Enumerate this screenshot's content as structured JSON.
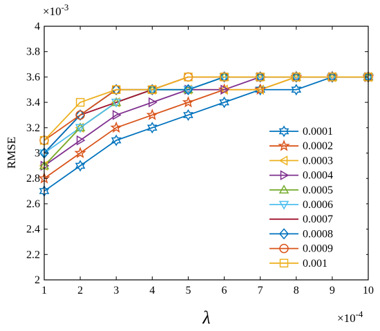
{
  "chart_data": {
    "type": "line",
    "title": "",
    "xlabel": "λ",
    "ylabel": "RMSE",
    "x_exponent_label": "×10",
    "x_exponent_power": "-4",
    "y_exponent_label": "×10",
    "y_exponent_power": "-3",
    "x": [
      1,
      2,
      3,
      4,
      5,
      6,
      7,
      8,
      9,
      10
    ],
    "xlim": [
      1,
      10
    ],
    "ylim": [
      2.0,
      4.0
    ],
    "x_ticks": [
      "1",
      "2",
      "3",
      "4",
      "5",
      "6",
      "7",
      "8",
      "9",
      "10"
    ],
    "y_ticks": [
      "2",
      "2.2",
      "2.4",
      "2.6",
      "2.8",
      "3",
      "3.2",
      "3.4",
      "3.6",
      "3.8",
      "4"
    ],
    "grid": false,
    "legend_position": "right-middle",
    "series": [
      {
        "name": "0.0001",
        "color": "#0072BD",
        "marker": "hexagram",
        "values": [
          2.7,
          2.9,
          3.1,
          3.2,
          3.3,
          3.4,
          3.5,
          3.5,
          3.6,
          3.6
        ]
      },
      {
        "name": "0.0002",
        "color": "#D95319",
        "marker": "pentagram",
        "values": [
          2.8,
          3.0,
          3.2,
          3.3,
          3.4,
          3.5,
          3.5,
          3.6,
          3.6,
          3.6
        ]
      },
      {
        "name": "0.0003",
        "color": "#EDB120",
        "marker": "triangle-left",
        "values": [
          2.9,
          3.2,
          3.4,
          3.5,
          3.5,
          3.5,
          3.5,
          3.6,
          3.6,
          3.6
        ]
      },
      {
        "name": "0.0004",
        "color": "#7E2F8E",
        "marker": "triangle-right",
        "values": [
          2.9,
          3.1,
          3.3,
          3.4,
          3.5,
          3.5,
          3.6,
          3.6,
          3.6,
          3.6
        ]
      },
      {
        "name": "0.0005",
        "color": "#77AC30",
        "marker": "triangle-up",
        "values": [
          2.9,
          3.2,
          3.4,
          3.5,
          3.5,
          3.6,
          3.6,
          3.6,
          3.6,
          3.6
        ]
      },
      {
        "name": "0.0006",
        "color": "#4DBEEE",
        "marker": "triangle-down",
        "values": [
          3.0,
          3.2,
          3.4,
          3.5,
          3.5,
          3.6,
          3.6,
          3.6,
          3.6,
          3.6
        ]
      },
      {
        "name": "0.0007",
        "color": "#A2142F",
        "marker": "none",
        "values": [
          3.0,
          3.3,
          3.4,
          3.5,
          3.6,
          3.6,
          3.6,
          3.6,
          3.6,
          3.6
        ]
      },
      {
        "name": "0.0008",
        "color": "#0072BD",
        "marker": "diamond",
        "values": [
          3.0,
          3.3,
          3.5,
          3.5,
          3.5,
          3.6,
          3.6,
          3.6,
          3.6,
          3.6
        ]
      },
      {
        "name": "0.0009",
        "color": "#D95319",
        "marker": "circle",
        "values": [
          3.1,
          3.3,
          3.5,
          3.5,
          3.6,
          3.6,
          3.6,
          3.6,
          3.6,
          3.6
        ]
      },
      {
        "name": "0.001",
        "color": "#EDB120",
        "marker": "square",
        "values": [
          3.1,
          3.4,
          3.5,
          3.5,
          3.6,
          3.6,
          3.6,
          3.6,
          3.6,
          3.6
        ]
      }
    ]
  }
}
